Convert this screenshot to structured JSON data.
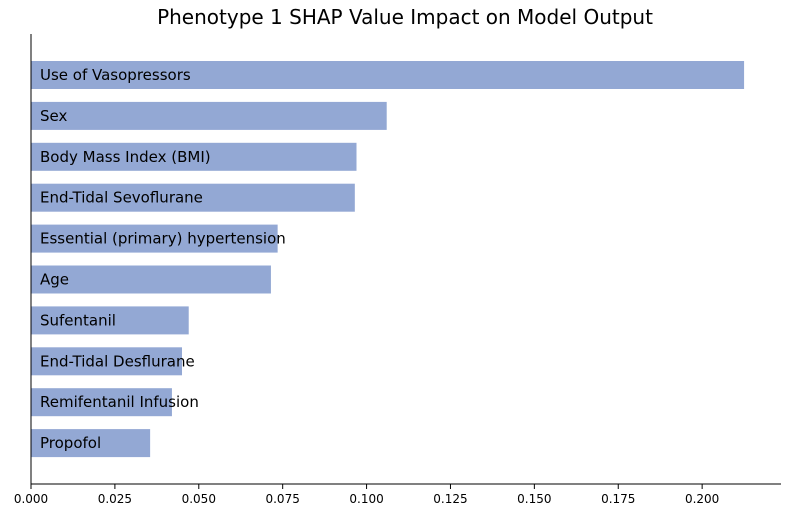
{
  "chart_data": {
    "type": "bar",
    "orientation": "horizontal",
    "title": "Phenotype 1 SHAP Value Impact on Model Output",
    "xlabel": "",
    "ylabel": "",
    "categories": [
      "Use of Vasopressors",
      "Sex",
      "Body Mass Index (BMI)",
      "End-Tidal Sevoflurane",
      "Essential (primary) hypertension",
      "Age",
      "Sufentanil",
      "End-Tidal Desflurane",
      "Remifentanil Infusion",
      "Propofol"
    ],
    "values": [
      0.2125,
      0.106,
      0.097,
      0.0965,
      0.0735,
      0.0715,
      0.047,
      0.045,
      0.042,
      0.0355
    ],
    "xlim": [
      0,
      0.2235
    ],
    "xticks": [
      0.0,
      0.025,
      0.05,
      0.075,
      0.1,
      0.125,
      0.15,
      0.175,
      0.2
    ],
    "xtick_labels": [
      "0.000",
      "0.025",
      "0.050",
      "0.075",
      "0.100",
      "0.125",
      "0.150",
      "0.175",
      "0.200"
    ],
    "bar_color": "#93a8d4",
    "grid": false,
    "legend": "none"
  }
}
